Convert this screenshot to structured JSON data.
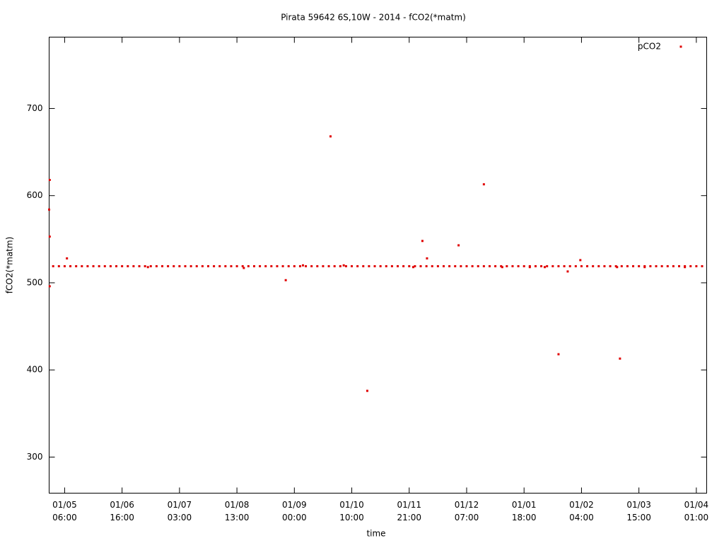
{
  "chart_data": {
    "type": "scatter",
    "title": "Pirata 59642 6S,10W - 2014 - fCO2(*matm)",
    "x_label": "time",
    "y_label": "fCO2(*matm)",
    "xlim": [
      -0.27,
      11.18
    ],
    "ylim": [
      258.6,
      781.9
    ],
    "xticks": [
      {
        "value": 0,
        "label": [
          "01/05",
          "06:00"
        ]
      },
      {
        "value": 1,
        "label": [
          "01/06",
          "16:00"
        ]
      },
      {
        "value": 2,
        "label": [
          "01/07",
          "03:00"
        ]
      },
      {
        "value": 3,
        "label": [
          "01/08",
          "13:00"
        ]
      },
      {
        "value": 4,
        "label": [
          "01/09",
          "00:00"
        ]
      },
      {
        "value": 5,
        "label": [
          "01/10",
          "10:00"
        ]
      },
      {
        "value": 6,
        "label": [
          "01/11",
          "21:00"
        ]
      },
      {
        "value": 7,
        "label": [
          "01/12",
          "07:00"
        ]
      },
      {
        "value": 8,
        "label": [
          "01/01",
          "18:00"
        ]
      },
      {
        "value": 9,
        "label": [
          "01/02",
          "04:00"
        ]
      },
      {
        "value": 10,
        "label": [
          "01/03",
          "15:00"
        ]
      },
      {
        "value": 11,
        "label": [
          "01/04",
          "01:00"
        ]
      }
    ],
    "yticks": [
      300,
      400,
      500,
      600,
      700
    ],
    "legend": "top-right",
    "series": [
      {
        "name": "pCO2",
        "color": "#e00000",
        "x": [
          -0.26,
          -0.27,
          -0.26,
          -0.26,
          0.04,
          1.45,
          3.12,
          3.85,
          4.15,
          4.63,
          4.86,
          5.27,
          6.07,
          6.23,
          6.31,
          6.86,
          7.3,
          7.62,
          8.1,
          8.36,
          8.6,
          8.76,
          8.98,
          9.62,
          9.67,
          10.1,
          10.8,
          -0.2,
          -0.1,
          0,
          0.1,
          0.2,
          0.3,
          0.4,
          0.5,
          0.6,
          0.7,
          0.8,
          0.9,
          1,
          1.1,
          1.2,
          1.3,
          1.4,
          1.5,
          1.6,
          1.7,
          1.8,
          1.9,
          2,
          2.1,
          2.2,
          2.3,
          2.4,
          2.5,
          2.6,
          2.7,
          2.8,
          2.9,
          3,
          3.1,
          3.2,
          3.3,
          3.4,
          3.5,
          3.6,
          3.7,
          3.8,
          3.9,
          4,
          4.1,
          4.2,
          4.3,
          4.4,
          4.5,
          4.6,
          4.7,
          4.8,
          4.9,
          5,
          5.1,
          5.2,
          5.3,
          5.4,
          5.5,
          5.6,
          5.7,
          5.8,
          5.9,
          6,
          6.1,
          6.2,
          6.3,
          6.4,
          6.5,
          6.6,
          6.7,
          6.8,
          6.9,
          7,
          7.1,
          7.2,
          7.3,
          7.4,
          7.5,
          7.6,
          7.7,
          7.8,
          7.9,
          8,
          8.1,
          8.2,
          8.3,
          8.4,
          8.5,
          8.6,
          8.7,
          8.8,
          8.9,
          9,
          9.1,
          9.2,
          9.3,
          9.4,
          9.5,
          9.6,
          9.7,
          9.8,
          9.9,
          10,
          10.1,
          10.2,
          10.3,
          10.4,
          10.5,
          10.6,
          10.7,
          10.8,
          10.9,
          11,
          11.1
        ],
        "values": [
          618,
          584,
          553,
          496,
          528,
          518,
          517,
          503,
          520,
          668,
          520,
          376,
          518,
          548,
          528,
          543,
          613,
          518,
          518,
          518,
          418,
          513,
          526,
          518,
          413,
          518,
          518,
          519,
          519,
          519,
          519,
          519,
          519,
          519,
          519,
          519,
          519,
          519,
          519,
          519,
          519,
          519,
          519,
          519,
          519,
          519,
          519,
          519,
          519,
          519,
          519,
          519,
          519,
          519,
          519,
          519,
          519,
          519,
          519,
          519,
          519,
          519,
          519,
          519,
          519,
          519,
          519,
          519,
          519,
          519,
          519,
          519,
          519,
          519,
          519,
          519,
          519,
          519,
          519,
          519,
          519,
          519,
          519,
          519,
          519,
          519,
          519,
          519,
          519,
          519,
          519,
          519,
          519,
          519,
          519,
          519,
          519,
          519,
          519,
          519,
          519,
          519,
          519,
          519,
          519,
          519,
          519,
          519,
          519,
          519,
          519,
          519,
          519,
          519,
          519,
          519,
          519,
          519,
          519,
          519,
          519,
          519,
          519,
          519,
          519,
          519,
          519,
          519,
          519,
          519,
          519,
          519,
          519,
          519,
          519,
          519,
          519,
          519,
          519,
          519,
          519
        ]
      }
    ]
  }
}
